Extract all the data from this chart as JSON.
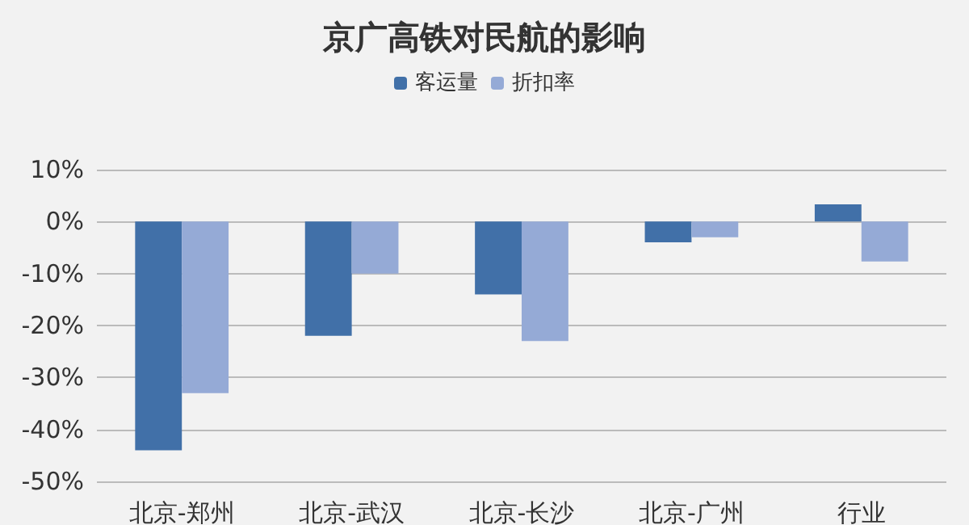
{
  "chart_data": {
    "type": "bar",
    "title": "京广高铁对民航的影响",
    "categories": [
      "北京-郑州",
      "北京-武汉",
      "北京-长沙",
      "北京-广州",
      "行业"
    ],
    "series": [
      {
        "name": "客运量",
        "color": "#4170a8",
        "values": [
          -44,
          -22,
          -14,
          -4,
          3.3
        ]
      },
      {
        "name": "折扣率",
        "color": "#95aad6",
        "values": [
          -33,
          -10,
          -23,
          -3,
          -7.7
        ]
      }
    ],
    "ylim": [
      -50,
      10
    ],
    "yticks": [
      {
        "value": -50,
        "label": "-50%"
      },
      {
        "value": -40,
        "label": "-40%"
      },
      {
        "value": -30,
        "label": "-30%"
      },
      {
        "value": -20,
        "label": "-20%"
      },
      {
        "value": -10,
        "label": "-10%"
      },
      {
        "value": 0,
        "label": "0%"
      },
      {
        "value": 10,
        "label": "10%"
      }
    ],
    "grid": "y",
    "legend": "top"
  }
}
